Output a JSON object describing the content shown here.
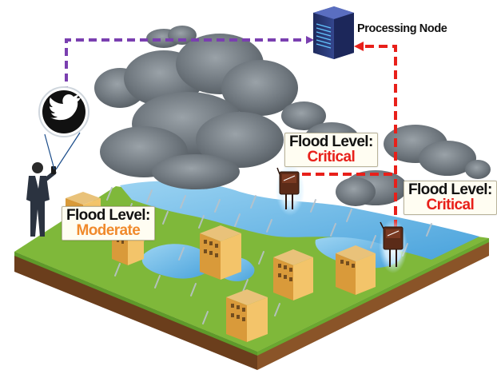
{
  "processing_node": {
    "label": "Processing Node"
  },
  "labels": {
    "moderate": {
      "title": "Flood Level:",
      "value": "Moderate"
    },
    "critical_1": {
      "title": "Flood Level:",
      "value": "Critical"
    },
    "critical_2": {
      "title": "Flood Level:",
      "value": "Critical"
    }
  },
  "colors": {
    "moderate": "#f08a2c",
    "critical": "#e8201a",
    "social_link": "#7a3fb0",
    "sensor_link": "#e8201a",
    "water": "#5cb4e6",
    "grass": "#7fb83a",
    "soil": "#7a4a24"
  },
  "icons": [
    "twitter-icon",
    "server-icon",
    "person-icon",
    "sensor-icon",
    "building-icon",
    "cloud-icon",
    "rain-icon"
  ]
}
